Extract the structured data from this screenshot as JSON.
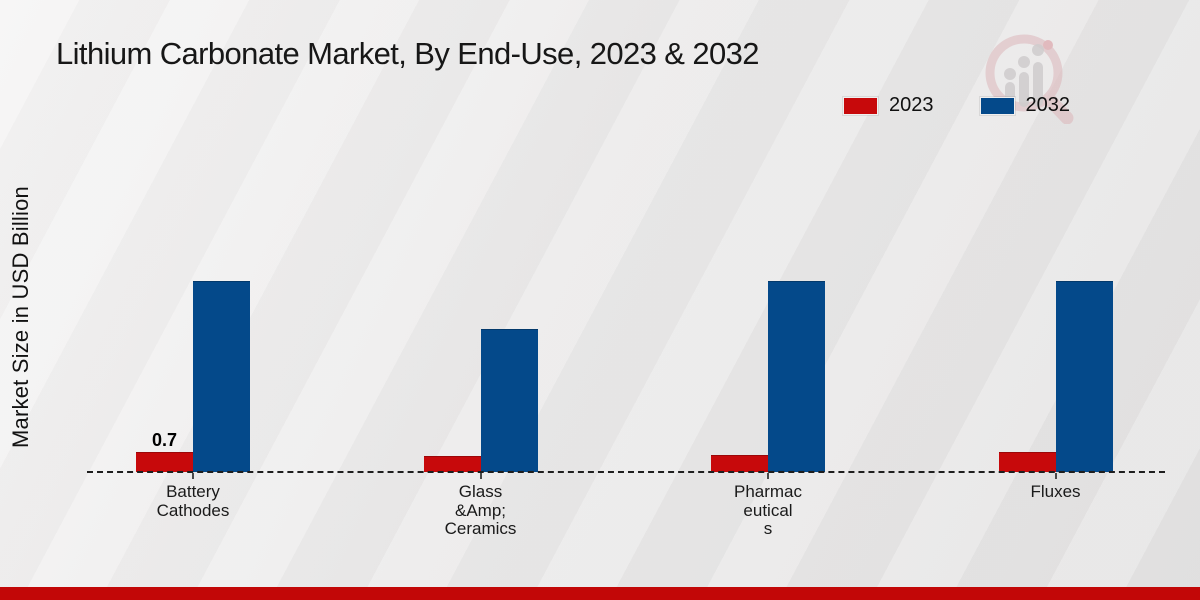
{
  "title": "Lithium Carbonate Market, By End-Use, 2023 & 2032",
  "ylabel": "Market Size in USD Billion",
  "legend": {
    "items": [
      {
        "label": "2023",
        "color": "#c7090b"
      },
      {
        "label": "2032",
        "color": "#04498a"
      }
    ]
  },
  "colors": {
    "series_2023": "#c7090b",
    "series_2032": "#04498a",
    "footer_band": "#c20707",
    "baseline": "#1e1e1e",
    "background": "#eae9e9"
  },
  "chart_data": {
    "type": "bar",
    "title": "Lithium Carbonate Market, By End-Use, 2023 & 2032",
    "xlabel": "",
    "ylabel": "Market Size in USD Billion",
    "categories": [
      "Battery Cathodes",
      "Glass &Amp; Ceramics",
      "Pharmaceuticals",
      "Fluxes"
    ],
    "category_label_lines": [
      [
        "Battery",
        "Cathodes"
      ],
      [
        "Glass",
        "&Amp;",
        "Ceramics"
      ],
      [
        "Pharmac",
        "eutical",
        "s"
      ],
      [
        "Fluxes"
      ]
    ],
    "series": [
      {
        "name": "2023",
        "color": "#c7090b",
        "values": [
          0.7,
          0.55,
          0.6,
          0.7
        ],
        "labels": [
          "0.7",
          "",
          "",
          ""
        ]
      },
      {
        "name": "2032",
        "color": "#04498a",
        "values": [
          7.0,
          5.25,
          7.0,
          7.0
        ],
        "labels": [
          "",
          "",
          "",
          ""
        ]
      }
    ],
    "ylim": [
      0,
      8
    ],
    "y_axis_ticks_visible": false,
    "grid": false,
    "baseline_style": "dashed",
    "legend_position": "top-right",
    "data_labels_shown": [
      "Battery Cathodes 2023 = 0.7"
    ]
  }
}
